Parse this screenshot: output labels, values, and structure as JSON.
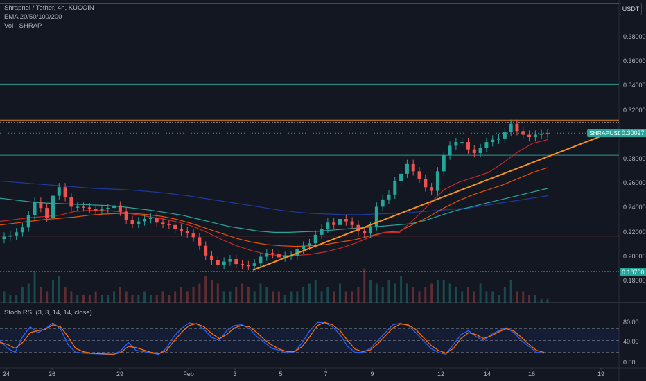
{
  "header": {
    "symbol_line": "Shrapnel / Tether, 4h, KUCOIN",
    "ema_line": "EMA 20/50/100/200",
    "vol_line": "Vol · SHRAP"
  },
  "currency": "USDT",
  "price_axis": [
    "0.38000",
    "0.36000",
    "0.34000",
    "0.32000",
    "0.28000",
    "0.26000",
    "0.24000",
    "0.22000",
    "0.20000",
    "0.18000"
  ],
  "last_price": {
    "symbol": "SHRAPUSDT",
    "value": "0.30027"
  },
  "level_label": "0.18700",
  "rsi": {
    "label": "Stoch RSI (3, 3, 14, 14, close)",
    "ticks": [
      "80.00",
      "40.00",
      "0.00"
    ]
  },
  "time_axis": [
    "24",
    "26",
    "29",
    "Feb",
    "3",
    "5",
    "7",
    "9",
    "12",
    "14",
    "16",
    "19"
  ],
  "colors": {
    "background": "#131722",
    "up": "#26a69a",
    "down": "#ef5350",
    "trendline": "#f7931a",
    "ema20": "#c62828",
    "ema50": "#e65100",
    "ema100": "#26a69a",
    "ema200": "#1e3a9a",
    "rsi_k": "#2962ff",
    "rsi_d": "#ff6d00"
  },
  "chart_data": {
    "type": "candlestick",
    "symbol": "Shrapnel / Tether",
    "timeframe": "4h",
    "exchange": "KUCOIN",
    "ylim": [
      0.175,
      0.395
    ],
    "horizontal_levels": [
      0.3406,
      0.3111,
      0.3093,
      0.2822,
      0.216,
      0.187
    ],
    "trendline": {
      "from": [
        3.6,
        0.188
      ],
      "to": [
        18.4,
        0.3035
      ]
    },
    "closes": [
      0.2155,
      0.2165,
      0.219,
      0.223,
      0.233,
      0.244,
      0.239,
      0.231,
      0.249,
      0.256,
      0.248,
      0.24,
      0.24,
      0.2395,
      0.238,
      0.237,
      0.238,
      0.239,
      0.241,
      0.236,
      0.229,
      0.226,
      0.228,
      0.23,
      0.231,
      0.227,
      0.226,
      0.225,
      0.222,
      0.22,
      0.218,
      0.215,
      0.208,
      0.2,
      0.196,
      0.192,
      0.195,
      0.197,
      0.193,
      0.192,
      0.1915,
      0.1935,
      0.199,
      0.202,
      0.201,
      0.1985,
      0.1995,
      0.2,
      0.205,
      0.208,
      0.21,
      0.217,
      0.222,
      0.227,
      0.225,
      0.23,
      0.228,
      0.225,
      0.22,
      0.218,
      0.224,
      0.24,
      0.246,
      0.25,
      0.261,
      0.267,
      0.275,
      0.269,
      0.263,
      0.256,
      0.253,
      0.269,
      0.282,
      0.29,
      0.293,
      0.293,
      0.287,
      0.284,
      0.288,
      0.293,
      0.295,
      0.296,
      0.301,
      0.308,
      0.302,
      0.299,
      0.297,
      0.299,
      0.3,
      0.3003
    ],
    "ema20": [
      0.228,
      0.2295,
      0.231,
      0.232,
      0.233,
      0.236,
      0.237,
      0.237,
      0.236,
      0.234,
      0.232,
      0.23,
      0.2275,
      0.224,
      0.219,
      0.213,
      0.208,
      0.204,
      0.201,
      0.2,
      0.2,
      0.201,
      0.203,
      0.206,
      0.21,
      0.215,
      0.219,
      0.219,
      0.23,
      0.242,
      0.254,
      0.26,
      0.264,
      0.268,
      0.276,
      0.285,
      0.292,
      0.295
    ],
    "ema50": [
      0.225,
      0.2265,
      0.228,
      0.2295,
      0.2305,
      0.2315,
      0.233,
      0.234,
      0.2345,
      0.2345,
      0.2335,
      0.232,
      0.2295,
      0.226,
      0.222,
      0.218,
      0.214,
      0.211,
      0.209,
      0.208,
      0.2075,
      0.208,
      0.209,
      0.211,
      0.213,
      0.216,
      0.219,
      0.22,
      0.226,
      0.232,
      0.239,
      0.245,
      0.25,
      0.254,
      0.258,
      0.263,
      0.268,
      0.272
    ],
    "ema100": [
      0.247,
      0.2455,
      0.244,
      0.243,
      0.2425,
      0.242,
      0.2415,
      0.241,
      0.24,
      0.2385,
      0.237,
      0.235,
      0.233,
      0.23,
      0.227,
      0.224,
      0.222,
      0.22,
      0.219,
      0.219,
      0.2195,
      0.22,
      0.221,
      0.222,
      0.223,
      0.224,
      0.225,
      0.226,
      0.229,
      0.233,
      0.237,
      0.24,
      0.243,
      0.246,
      0.249,
      0.252,
      0.255
    ],
    "ema200": [
      0.261,
      0.26,
      0.259,
      0.258,
      0.257,
      0.256,
      0.255,
      0.2545,
      0.254,
      0.253,
      0.252,
      0.2505,
      0.249,
      0.247,
      0.245,
      0.243,
      0.241,
      0.239,
      0.237,
      0.2355,
      0.2345,
      0.234,
      0.2335,
      0.2335,
      0.234,
      0.2345,
      0.235,
      0.236,
      0.237,
      0.238,
      0.239,
      0.241,
      0.243,
      0.245,
      0.247,
      0.249
    ],
    "volume": [
      3,
      2,
      2,
      4,
      5,
      8,
      4,
      3,
      6,
      7,
      4,
      3,
      2,
      2,
      2,
      3,
      2,
      2,
      3,
      4,
      3,
      2,
      2,
      3,
      2,
      2,
      3,
      2,
      3,
      4,
      3,
      4,
      5,
      7,
      6,
      5,
      3,
      3,
      4,
      5,
      4,
      3,
      5,
      4,
      3,
      3,
      2,
      3,
      3,
      4,
      5,
      6,
      3,
      4,
      3,
      5,
      3,
      3,
      4,
      9,
      6,
      5,
      4,
      6,
      5,
      7,
      5,
      4,
      3,
      4,
      5,
      6,
      6,
      5,
      4,
      3,
      4,
      3,
      5,
      3,
      3,
      2,
      4,
      6,
      3,
      3,
      2,
      2,
      1,
      1
    ],
    "stoch_k": [
      50,
      30,
      20,
      60,
      85,
      70,
      80,
      95,
      80,
      40,
      20,
      18,
      17,
      16,
      15,
      14,
      25,
      45,
      25,
      22,
      18,
      15,
      30,
      60,
      80,
      95,
      92,
      78,
      58,
      50,
      75,
      88,
      90,
      80,
      60,
      45,
      30,
      25,
      18,
      22,
      45,
      75,
      96,
      95,
      85,
      65,
      35,
      20,
      20,
      30,
      50,
      70,
      90,
      94,
      88,
      70,
      50,
      30,
      20,
      15,
      40,
      65,
      75,
      60,
      50,
      65,
      75,
      82,
      70,
      50,
      35,
      20,
      18
    ],
    "stoch_d": [
      45,
      40,
      30,
      45,
      70,
      75,
      78,
      90,
      85,
      60,
      30,
      22,
      18,
      17,
      16,
      15,
      20,
      35,
      32,
      26,
      20,
      17,
      24,
      48,
      70,
      88,
      93,
      85,
      68,
      55,
      65,
      82,
      88,
      85,
      70,
      52,
      38,
      28,
      22,
      22,
      35,
      60,
      88,
      96,
      90,
      75,
      50,
      28,
      22,
      26,
      42,
      62,
      82,
      92,
      90,
      78,
      58,
      38,
      25,
      18,
      30,
      55,
      70,
      65,
      55,
      62,
      72,
      80,
      74,
      58,
      40,
      25,
      20
    ],
    "stoch_levels": [
      80,
      50,
      20
    ],
    "x_ticks": [
      "24",
      "26",
      "29",
      "Feb",
      "3",
      "5",
      "7",
      "9",
      "12",
      "14",
      "16",
      "19"
    ]
  }
}
